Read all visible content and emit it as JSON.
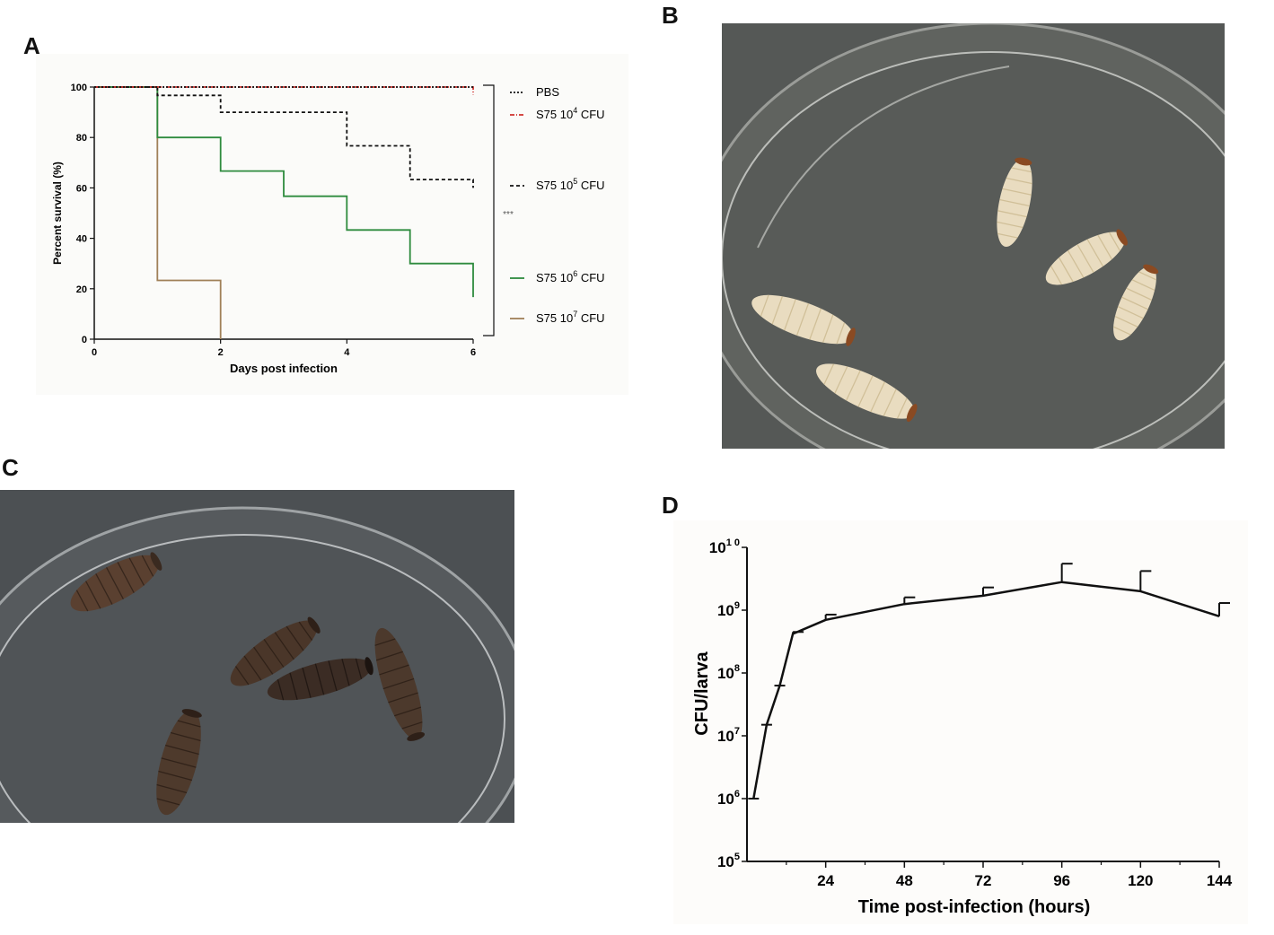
{
  "panels": {
    "a": "A",
    "b": "B",
    "c": "C",
    "d": "D"
  },
  "chart_data": [
    {
      "type": "line",
      "step": true,
      "xlabel": "Days post infection",
      "ylabel": "Percent survival (%)",
      "xlim": [
        0,
        6
      ],
      "ylim": [
        0,
        100
      ],
      "xticks": [
        "0",
        "2",
        "4",
        "6"
      ],
      "xtick_values": [
        0,
        2,
        4,
        6
      ],
      "yticks": [
        "0",
        "20",
        "40",
        "60",
        "80",
        "100"
      ],
      "ytick_values": [
        0,
        20,
        40,
        60,
        80,
        100
      ],
      "legend_position": "right",
      "significance": "***",
      "series": [
        {
          "legend": "PBS",
          "base": "",
          "exp": "",
          "unit": "",
          "color": "#111111",
          "dash": "dotted",
          "points": [
            [
              0,
              100
            ],
            [
              6,
              100
            ]
          ]
        },
        {
          "legend": "S75 10",
          "base": "S75 10",
          "exp": "4",
          "unit": " CFU",
          "color": "#d0312d",
          "dash": "dashdot",
          "points": [
            [
              0,
              100
            ],
            [
              6,
              100
            ],
            [
              6,
              97
            ]
          ]
        },
        {
          "legend": "S75 10",
          "base": "S75 10",
          "exp": "5",
          "unit": " CFU",
          "color": "#111111",
          "dash": "dashed",
          "points": [
            [
              0,
              100
            ],
            [
              1,
              100
            ],
            [
              1,
              96.7
            ],
            [
              2,
              96.7
            ],
            [
              2,
              90
            ],
            [
              4,
              90
            ],
            [
              4,
              76.7
            ],
            [
              5,
              76.7
            ],
            [
              5,
              63.3
            ],
            [
              6,
              63.3
            ],
            [
              6,
              60
            ]
          ]
        },
        {
          "legend": "S75 10",
          "base": "S75 10",
          "exp": "6",
          "unit": " CFU",
          "color": "#2e8b3e",
          "dash": "solid",
          "points": [
            [
              0,
              100
            ],
            [
              1,
              100
            ],
            [
              1,
              80
            ],
            [
              2,
              80
            ],
            [
              2,
              66.7
            ],
            [
              3,
              66.7
            ],
            [
              3,
              56.7
            ],
            [
              4,
              56.7
            ],
            [
              4,
              43.3
            ],
            [
              5,
              43.3
            ],
            [
              5,
              30
            ],
            [
              6,
              30
            ],
            [
              6,
              16.7
            ]
          ]
        },
        {
          "legend": "S75 10",
          "base": "S75 10",
          "exp": "7",
          "unit": " CFU",
          "color": "#a08058",
          "dash": "solid",
          "points": [
            [
              0,
              100
            ],
            [
              1,
              100
            ],
            [
              1,
              23.3
            ],
            [
              2,
              23.3
            ],
            [
              2,
              0
            ]
          ]
        }
      ]
    },
    {
      "type": "line",
      "xlabel": "Time post-infection (hours)",
      "ylabel": "CFU/larva",
      "yscale": "log",
      "xlim": [
        0,
        144
      ],
      "ylim": [
        100000,
        10000000000
      ],
      "xticks": [
        "24",
        "48",
        "72",
        "96",
        "120",
        "144"
      ],
      "xtick_values": [
        24,
        48,
        72,
        96,
        120,
        144
      ],
      "yticks_base": "10",
      "yticks_exp": [
        "5",
        "6",
        "7",
        "8",
        "9",
        "1 0"
      ],
      "ytick_values": [
        100000,
        1000000,
        10000000,
        100000000,
        1000000000,
        10000000000
      ],
      "series": [
        {
          "x": [
            2,
            6,
            10,
            14,
            24,
            48,
            72,
            96,
            120,
            144
          ],
          "y": [
            1000000,
            15000000,
            63000000,
            420000000,
            700000000,
            1250000000,
            1700000000,
            2800000000,
            2000000000,
            800000000
          ],
          "err_upper": [
            1000000,
            15000000,
            63000000,
            450000000,
            850000000,
            1600000000,
            2300000000,
            5500000000,
            4200000000,
            1300000000
          ]
        }
      ]
    }
  ],
  "photos": {
    "b": {
      "subject": "live-larvae-in-dish",
      "larva_color": "#e9dcc0",
      "background": "#555856"
    },
    "c": {
      "subject": "melanized-larvae-in-dish",
      "larva_color": "#3b2c24",
      "background": "#4c5053"
    }
  }
}
